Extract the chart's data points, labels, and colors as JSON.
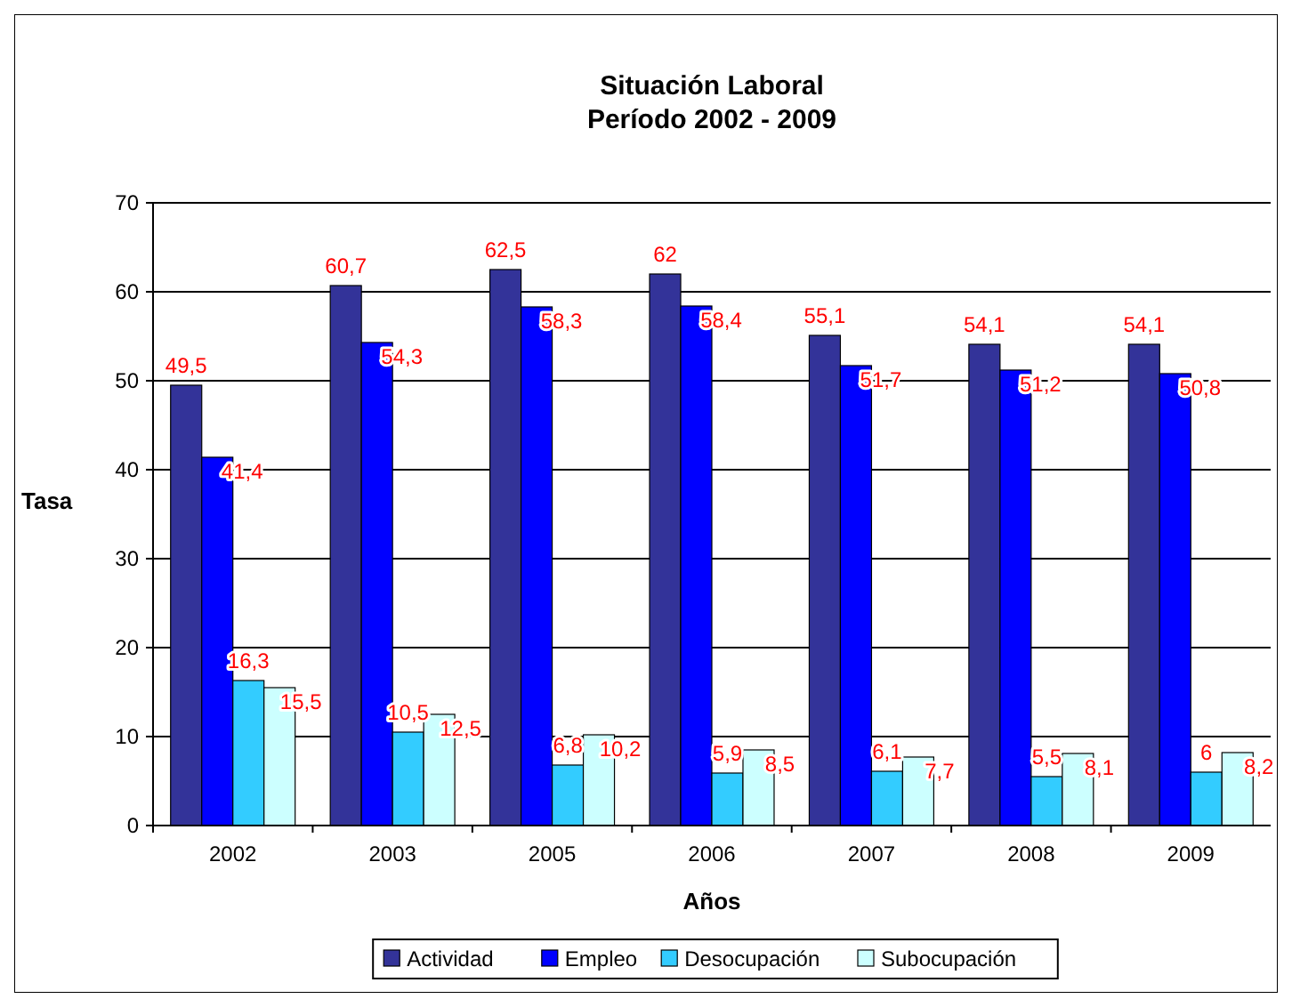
{
  "chart_data": {
    "type": "bar",
    "title": "Situación Laboral\nPeríodo 2002 - 2009",
    "xlabel": "Años",
    "ylabel": "Tasa",
    "categories": [
      "2002",
      "2003",
      "2005",
      "2006",
      "2007",
      "2008",
      "2009"
    ],
    "series": [
      {
        "name": "Actividad",
        "color": "#333399",
        "values": [
          49.5,
          60.7,
          62.5,
          62,
          55.1,
          54.1,
          54.1
        ],
        "value_labels": [
          "49,5",
          "60,7",
          "62,5",
          "62",
          "55,1",
          "54,1",
          "54,1"
        ]
      },
      {
        "name": "Empleo",
        "color": "#0000ff",
        "values": [
          41.4,
          54.3,
          58.3,
          58.4,
          51.7,
          51.2,
          50.8
        ],
        "value_labels": [
          "41,4",
          "54,3",
          "58,3",
          "58,4",
          "51,7",
          "51,2",
          "50,8"
        ]
      },
      {
        "name": "Desocupación",
        "color": "#33ccff",
        "values": [
          16.3,
          10.5,
          6.8,
          5.9,
          6.1,
          5.5,
          6
        ],
        "value_labels": [
          "16,3",
          "10,5",
          "6,8",
          "5,9",
          "6,1",
          "5,5",
          "6"
        ]
      },
      {
        "name": "Subocupación",
        "color": "#ccffff",
        "values": [
          15.5,
          12.5,
          10.2,
          8.5,
          7.7,
          8.1,
          8.2
        ],
        "value_labels": [
          "15,5",
          "12,5",
          "10,2",
          "8,5",
          "7,7",
          "8,1",
          "8,2"
        ]
      }
    ],
    "ylim": [
      0,
      70
    ],
    "yticks": [
      0,
      10,
      20,
      30,
      40,
      50,
      60,
      70
    ],
    "grid": "y",
    "legend": "bottom"
  }
}
